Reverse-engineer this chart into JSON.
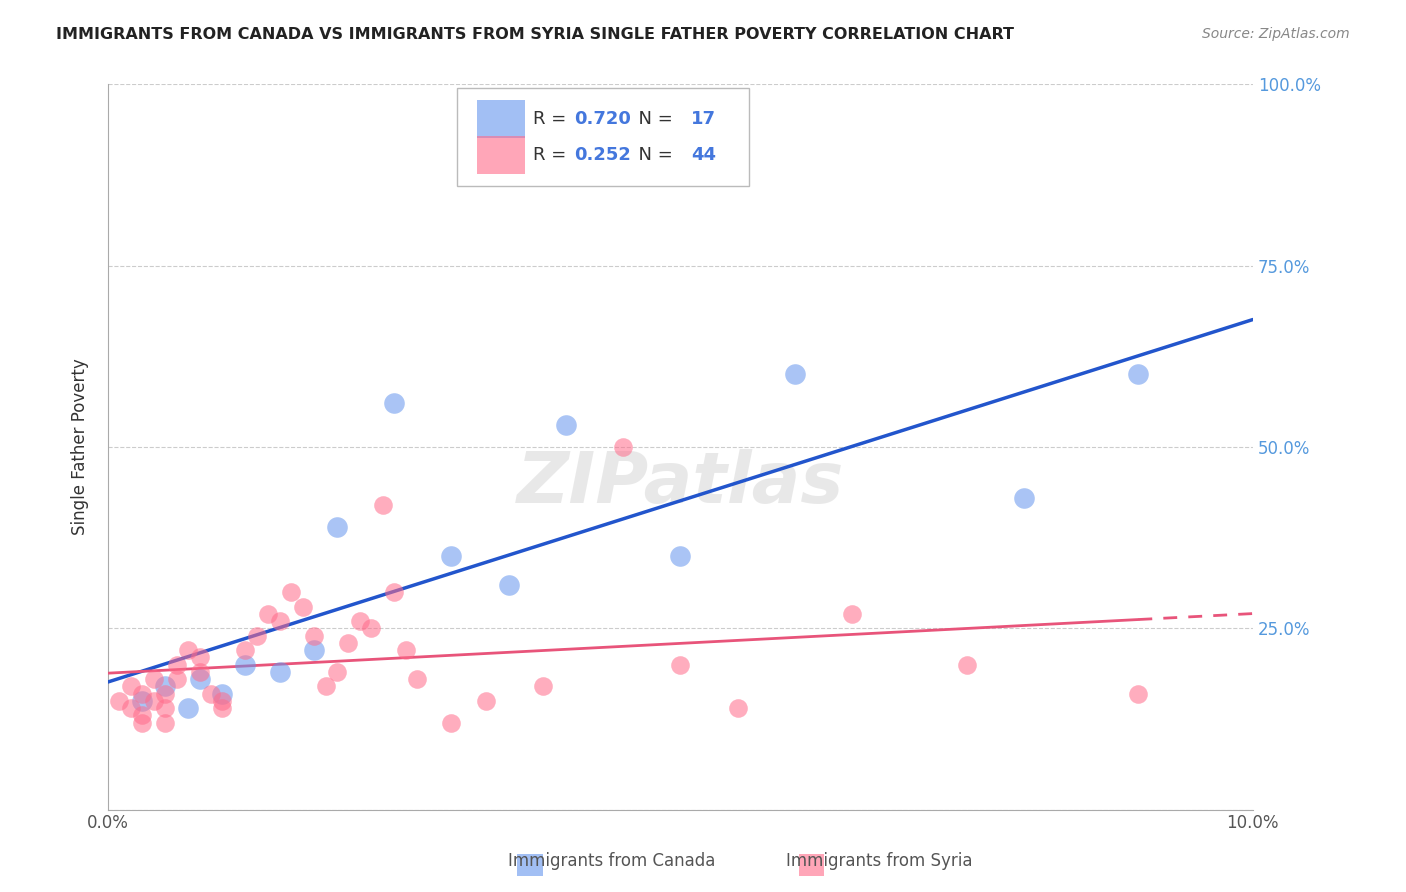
{
  "title": "IMMIGRANTS FROM CANADA VS IMMIGRANTS FROM SYRIA SINGLE FATHER POVERTY CORRELATION CHART",
  "source": "Source: ZipAtlas.com",
  "ylabel": "Single Father Poverty",
  "legend_canada": "Immigrants from Canada",
  "legend_syria": "Immigrants from Syria",
  "R_canada": 0.72,
  "N_canada": 17,
  "R_syria": 0.252,
  "N_syria": 44,
  "xlim": [
    0.0,
    0.1
  ],
  "ylim": [
    0.0,
    1.0
  ],
  "ytick_vals": [
    0.0,
    0.25,
    0.5,
    0.75,
    1.0
  ],
  "ytick_labels": [
    "",
    "25.0%",
    "50.0%",
    "75.0%",
    "100.0%"
  ],
  "color_canada": "#6495ED",
  "color_syria": "#FF6B8A",
  "background_color": "#FFFFFF",
  "watermark": "ZIPatlas",
  "canada_x": [
    0.003,
    0.005,
    0.007,
    0.008,
    0.01,
    0.012,
    0.015,
    0.018,
    0.02,
    0.025,
    0.03,
    0.035,
    0.04,
    0.05,
    0.06,
    0.08,
    0.09
  ],
  "canada_y": [
    0.15,
    0.17,
    0.14,
    0.18,
    0.16,
    0.2,
    0.19,
    0.22,
    0.39,
    0.56,
    0.35,
    0.31,
    0.53,
    0.35,
    0.6,
    0.43,
    0.6
  ],
  "syria_x": [
    0.001,
    0.002,
    0.002,
    0.003,
    0.003,
    0.003,
    0.004,
    0.004,
    0.005,
    0.005,
    0.005,
    0.006,
    0.006,
    0.007,
    0.008,
    0.008,
    0.009,
    0.01,
    0.01,
    0.012,
    0.013,
    0.014,
    0.015,
    0.016,
    0.017,
    0.018,
    0.019,
    0.02,
    0.021,
    0.022,
    0.023,
    0.024,
    0.025,
    0.026,
    0.027,
    0.03,
    0.033,
    0.038,
    0.045,
    0.05,
    0.055,
    0.065,
    0.075,
    0.09
  ],
  "syria_y": [
    0.15,
    0.14,
    0.17,
    0.16,
    0.13,
    0.12,
    0.15,
    0.18,
    0.16,
    0.14,
    0.12,
    0.18,
    0.2,
    0.22,
    0.21,
    0.19,
    0.16,
    0.15,
    0.14,
    0.22,
    0.24,
    0.27,
    0.26,
    0.3,
    0.28,
    0.24,
    0.17,
    0.19,
    0.23,
    0.26,
    0.25,
    0.42,
    0.3,
    0.22,
    0.18,
    0.12,
    0.15,
    0.17,
    0.5,
    0.2,
    0.14,
    0.27,
    0.2,
    0.16
  ]
}
